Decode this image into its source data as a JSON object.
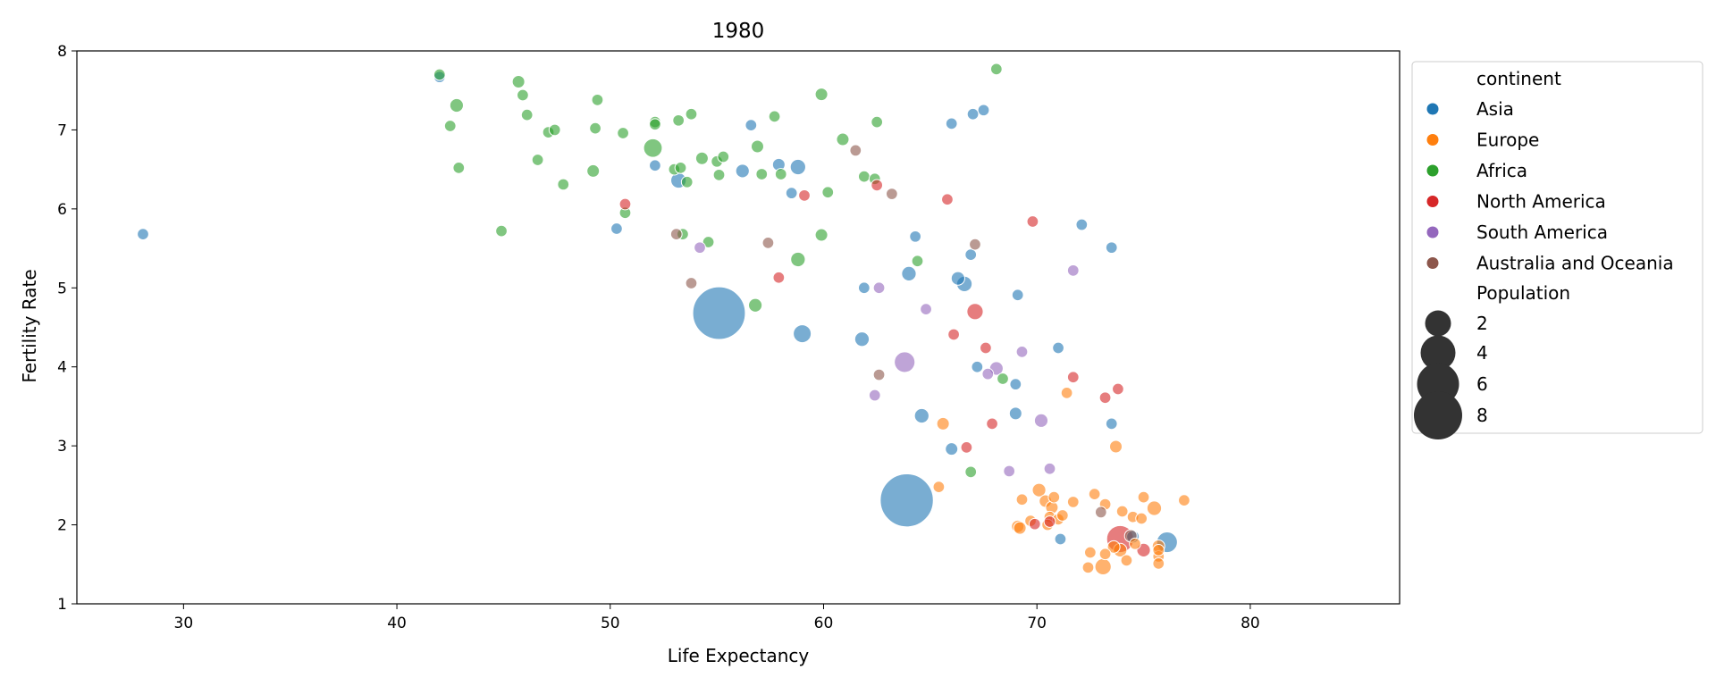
{
  "chart_data": {
    "type": "scatter",
    "title": "1980",
    "xlabel": "Life Expectancy",
    "ylabel": "Fertility Rate",
    "xlim": [
      25,
      87
    ],
    "ylim": [
      1,
      8
    ],
    "xticks": [
      30,
      40,
      50,
      60,
      70,
      80
    ],
    "yticks": [
      1,
      2,
      3,
      4,
      5,
      6,
      7,
      8
    ],
    "grid": false,
    "legend": {
      "placement": "outside-right",
      "hue_title": "continent",
      "size_title": "Population",
      "size_entries": [
        {
          "label": "2",
          "value": 2
        },
        {
          "label": "4",
          "value": 4
        },
        {
          "label": "6",
          "value": 6
        },
        {
          "label": "8",
          "value": 8
        }
      ]
    },
    "series": [
      {
        "name": "Asia",
        "color": "#1f77b4",
        "points": [
          [
            28.1,
            5.68,
            0.1
          ],
          [
            42.0,
            7.67,
            0.1
          ],
          [
            50.3,
            5.75,
            0.1
          ],
          [
            52.1,
            6.55,
            0.1
          ],
          [
            53.2,
            6.36,
            0.5
          ],
          [
            56.2,
            6.48,
            0.3
          ],
          [
            56.6,
            7.06,
            0.1
          ],
          [
            57.9,
            6.56,
            0.2
          ],
          [
            58.5,
            6.2,
            0.1
          ],
          [
            58.8,
            6.53,
            0.5
          ],
          [
            55.1,
            4.68,
            9.8
          ],
          [
            59.0,
            4.42,
            0.8
          ],
          [
            61.8,
            4.35,
            0.4
          ],
          [
            61.9,
            5.0,
            0.1
          ],
          [
            64.0,
            5.18,
            0.4
          ],
          [
            64.3,
            5.65,
            0.1
          ],
          [
            66.0,
            7.08,
            0.1
          ],
          [
            67.0,
            7.2,
            0.1
          ],
          [
            67.5,
            7.25,
            0.1
          ],
          [
            66.3,
            5.12,
            0.3
          ],
          [
            66.6,
            5.05,
            0.5
          ],
          [
            66.9,
            5.42,
            0.1
          ],
          [
            69.1,
            4.91,
            0.1
          ],
          [
            72.1,
            5.8,
            0.1
          ],
          [
            73.5,
            5.51,
            0.1
          ],
          [
            71.0,
            4.24,
            0.1
          ],
          [
            67.2,
            4.0,
            0.1
          ],
          [
            69.0,
            3.78,
            0.1
          ],
          [
            64.6,
            3.38,
            0.4
          ],
          [
            66.0,
            2.96,
            0.2
          ],
          [
            69.0,
            3.41,
            0.2
          ],
          [
            73.5,
            3.28,
            0.1
          ],
          [
            63.9,
            2.31,
            10.0
          ],
          [
            71.1,
            1.82,
            0.1
          ],
          [
            74.5,
            1.85,
            0.2
          ],
          [
            76.1,
            1.78,
            1.2
          ]
        ]
      },
      {
        "name": "Europe",
        "color": "#ff7f0e",
        "points": [
          [
            65.4,
            2.48,
            0.1
          ],
          [
            65.6,
            3.28,
            0.2
          ],
          [
            71.4,
            3.67,
            0.1
          ],
          [
            73.7,
            2.99,
            0.2
          ],
          [
            69.3,
            2.32,
            0.1
          ],
          [
            70.1,
            2.44,
            0.3
          ],
          [
            70.4,
            2.3,
            0.2
          ],
          [
            70.8,
            2.35,
            0.1
          ],
          [
            71.7,
            2.29,
            0.1
          ],
          [
            72.7,
            2.39,
            0.1
          ],
          [
            73.2,
            2.26,
            0.1
          ],
          [
            74.0,
            2.17,
            0.1
          ],
          [
            74.5,
            2.1,
            0.1
          ],
          [
            74.9,
            2.08,
            0.1
          ],
          [
            75.0,
            2.35,
            0.1
          ],
          [
            75.5,
            2.21,
            0.4
          ],
          [
            76.9,
            2.31,
            0.1
          ],
          [
            69.7,
            2.05,
            0.1
          ],
          [
            70.6,
            2.1,
            0.1
          ],
          [
            70.7,
            2.22,
            0.2
          ],
          [
            71.0,
            2.07,
            0.1
          ],
          [
            71.2,
            2.12,
            0.1
          ],
          [
            69.1,
            1.98,
            0.2
          ],
          [
            69.2,
            1.96,
            0.2
          ],
          [
            70.5,
            2.0,
            0.1
          ],
          [
            72.5,
            1.65,
            0.1
          ],
          [
            72.4,
            1.46,
            0.1
          ],
          [
            73.1,
            1.47,
            0.6
          ],
          [
            73.2,
            1.63,
            0.1
          ],
          [
            73.6,
            1.72,
            0.2
          ],
          [
            73.9,
            1.68,
            0.3
          ],
          [
            74.2,
            1.55,
            0.1
          ],
          [
            74.6,
            1.76,
            0.1
          ],
          [
            75.7,
            1.73,
            0.2
          ],
          [
            75.7,
            1.6,
            0.1
          ],
          [
            75.7,
            1.51,
            0.1
          ],
          [
            75.7,
            1.68,
            0.1
          ]
        ]
      },
      {
        "name": "Africa",
        "color": "#2ca02c",
        "points": [
          [
            42.0,
            7.7,
            0.1
          ],
          [
            42.5,
            7.05,
            0.1
          ],
          [
            42.8,
            7.31,
            0.3
          ],
          [
            42.9,
            6.52,
            0.1
          ],
          [
            44.9,
            5.72,
            0.1
          ],
          [
            45.7,
            7.61,
            0.2
          ],
          [
            45.9,
            7.44,
            0.1
          ],
          [
            46.1,
            7.19,
            0.1
          ],
          [
            46.6,
            6.62,
            0.1
          ],
          [
            47.1,
            6.97,
            0.1
          ],
          [
            47.4,
            7.0,
            0.1
          ],
          [
            47.8,
            6.31,
            0.1
          ],
          [
            49.2,
            6.48,
            0.2
          ],
          [
            49.3,
            7.02,
            0.1
          ],
          [
            49.4,
            7.38,
            0.1
          ],
          [
            50.6,
            6.96,
            0.1
          ],
          [
            50.7,
            5.95,
            0.1
          ],
          [
            52.0,
            6.77,
            0.9
          ],
          [
            52.1,
            7.1,
            0.1
          ],
          [
            52.1,
            7.07,
            0.1
          ],
          [
            53.0,
            6.5,
            0.1
          ],
          [
            53.2,
            7.12,
            0.1
          ],
          [
            53.3,
            6.52,
            0.1
          ],
          [
            53.4,
            5.68,
            0.1
          ],
          [
            53.6,
            6.34,
            0.1
          ],
          [
            53.8,
            7.2,
            0.1
          ],
          [
            54.3,
            6.64,
            0.2
          ],
          [
            54.6,
            5.58,
            0.1
          ],
          [
            55.0,
            6.6,
            0.1
          ],
          [
            55.1,
            6.43,
            0.1
          ],
          [
            55.3,
            6.66,
            0.1
          ],
          [
            56.8,
            4.78,
            0.3
          ],
          [
            56.9,
            6.79,
            0.2
          ],
          [
            57.1,
            6.44,
            0.1
          ],
          [
            57.7,
            7.17,
            0.1
          ],
          [
            58.0,
            6.44,
            0.1
          ],
          [
            58.8,
            5.36,
            0.4
          ],
          [
            59.9,
            5.67,
            0.2
          ],
          [
            59.9,
            7.45,
            0.2
          ],
          [
            60.2,
            6.21,
            0.1
          ],
          [
            60.9,
            6.88,
            0.2
          ],
          [
            61.9,
            6.41,
            0.1
          ],
          [
            62.4,
            6.38,
            0.1
          ],
          [
            62.5,
            7.1,
            0.1
          ],
          [
            64.4,
            5.34,
            0.1
          ],
          [
            66.9,
            2.67,
            0.1
          ],
          [
            68.1,
            7.77,
            0.1
          ],
          [
            68.4,
            3.85,
            0.1
          ]
        ]
      },
      {
        "name": "North America",
        "color": "#d62728",
        "points": [
          [
            50.7,
            6.06,
            0.1
          ],
          [
            57.9,
            5.13,
            0.1
          ],
          [
            59.1,
            6.17,
            0.1
          ],
          [
            62.5,
            6.3,
            0.1
          ],
          [
            65.8,
            6.12,
            0.1
          ],
          [
            66.1,
            4.41,
            0.1
          ],
          [
            66.7,
            2.98,
            0.1
          ],
          [
            67.1,
            4.7,
            0.6
          ],
          [
            67.6,
            4.24,
            0.1
          ],
          [
            67.9,
            3.28,
            0.1
          ],
          [
            69.8,
            5.84,
            0.1
          ],
          [
            69.9,
            2.01,
            0.1
          ],
          [
            71.7,
            3.87,
            0.1
          ],
          [
            73.2,
            3.61,
            0.1
          ],
          [
            73.8,
            3.72,
            0.1
          ],
          [
            73.9,
            1.82,
            2.3
          ],
          [
            75.0,
            1.68,
            0.3
          ],
          [
            70.6,
            2.04,
            0.1
          ]
        ]
      },
      {
        "name": "South America",
        "color": "#9467bd",
        "points": [
          [
            54.2,
            5.51,
            0.1
          ],
          [
            62.4,
            3.64,
            0.1
          ],
          [
            62.6,
            5.0,
            0.1
          ],
          [
            63.8,
            4.06,
            1.2
          ],
          [
            64.8,
            4.73,
            0.1
          ],
          [
            67.7,
            3.91,
            0.1
          ],
          [
            68.1,
            3.98,
            0.3
          ],
          [
            68.7,
            2.68,
            0.1
          ],
          [
            69.3,
            4.19,
            0.1
          ],
          [
            70.2,
            3.32,
            0.3
          ],
          [
            70.6,
            2.71,
            0.1
          ],
          [
            71.7,
            5.22,
            0.1
          ]
        ]
      },
      {
        "name": "Australia and Oceania",
        "color": "#8c564b",
        "points": [
          [
            53.1,
            5.68,
            0.1
          ],
          [
            53.8,
            5.06,
            0.1
          ],
          [
            57.4,
            5.57,
            0.1
          ],
          [
            61.5,
            6.74,
            0.1
          ],
          [
            62.6,
            3.9,
            0.1
          ],
          [
            63.2,
            6.19,
            0.1
          ],
          [
            67.1,
            5.55,
            0.1
          ],
          [
            73.0,
            2.16,
            0.1
          ],
          [
            74.4,
            1.86,
            0.2
          ]
        ]
      }
    ]
  }
}
